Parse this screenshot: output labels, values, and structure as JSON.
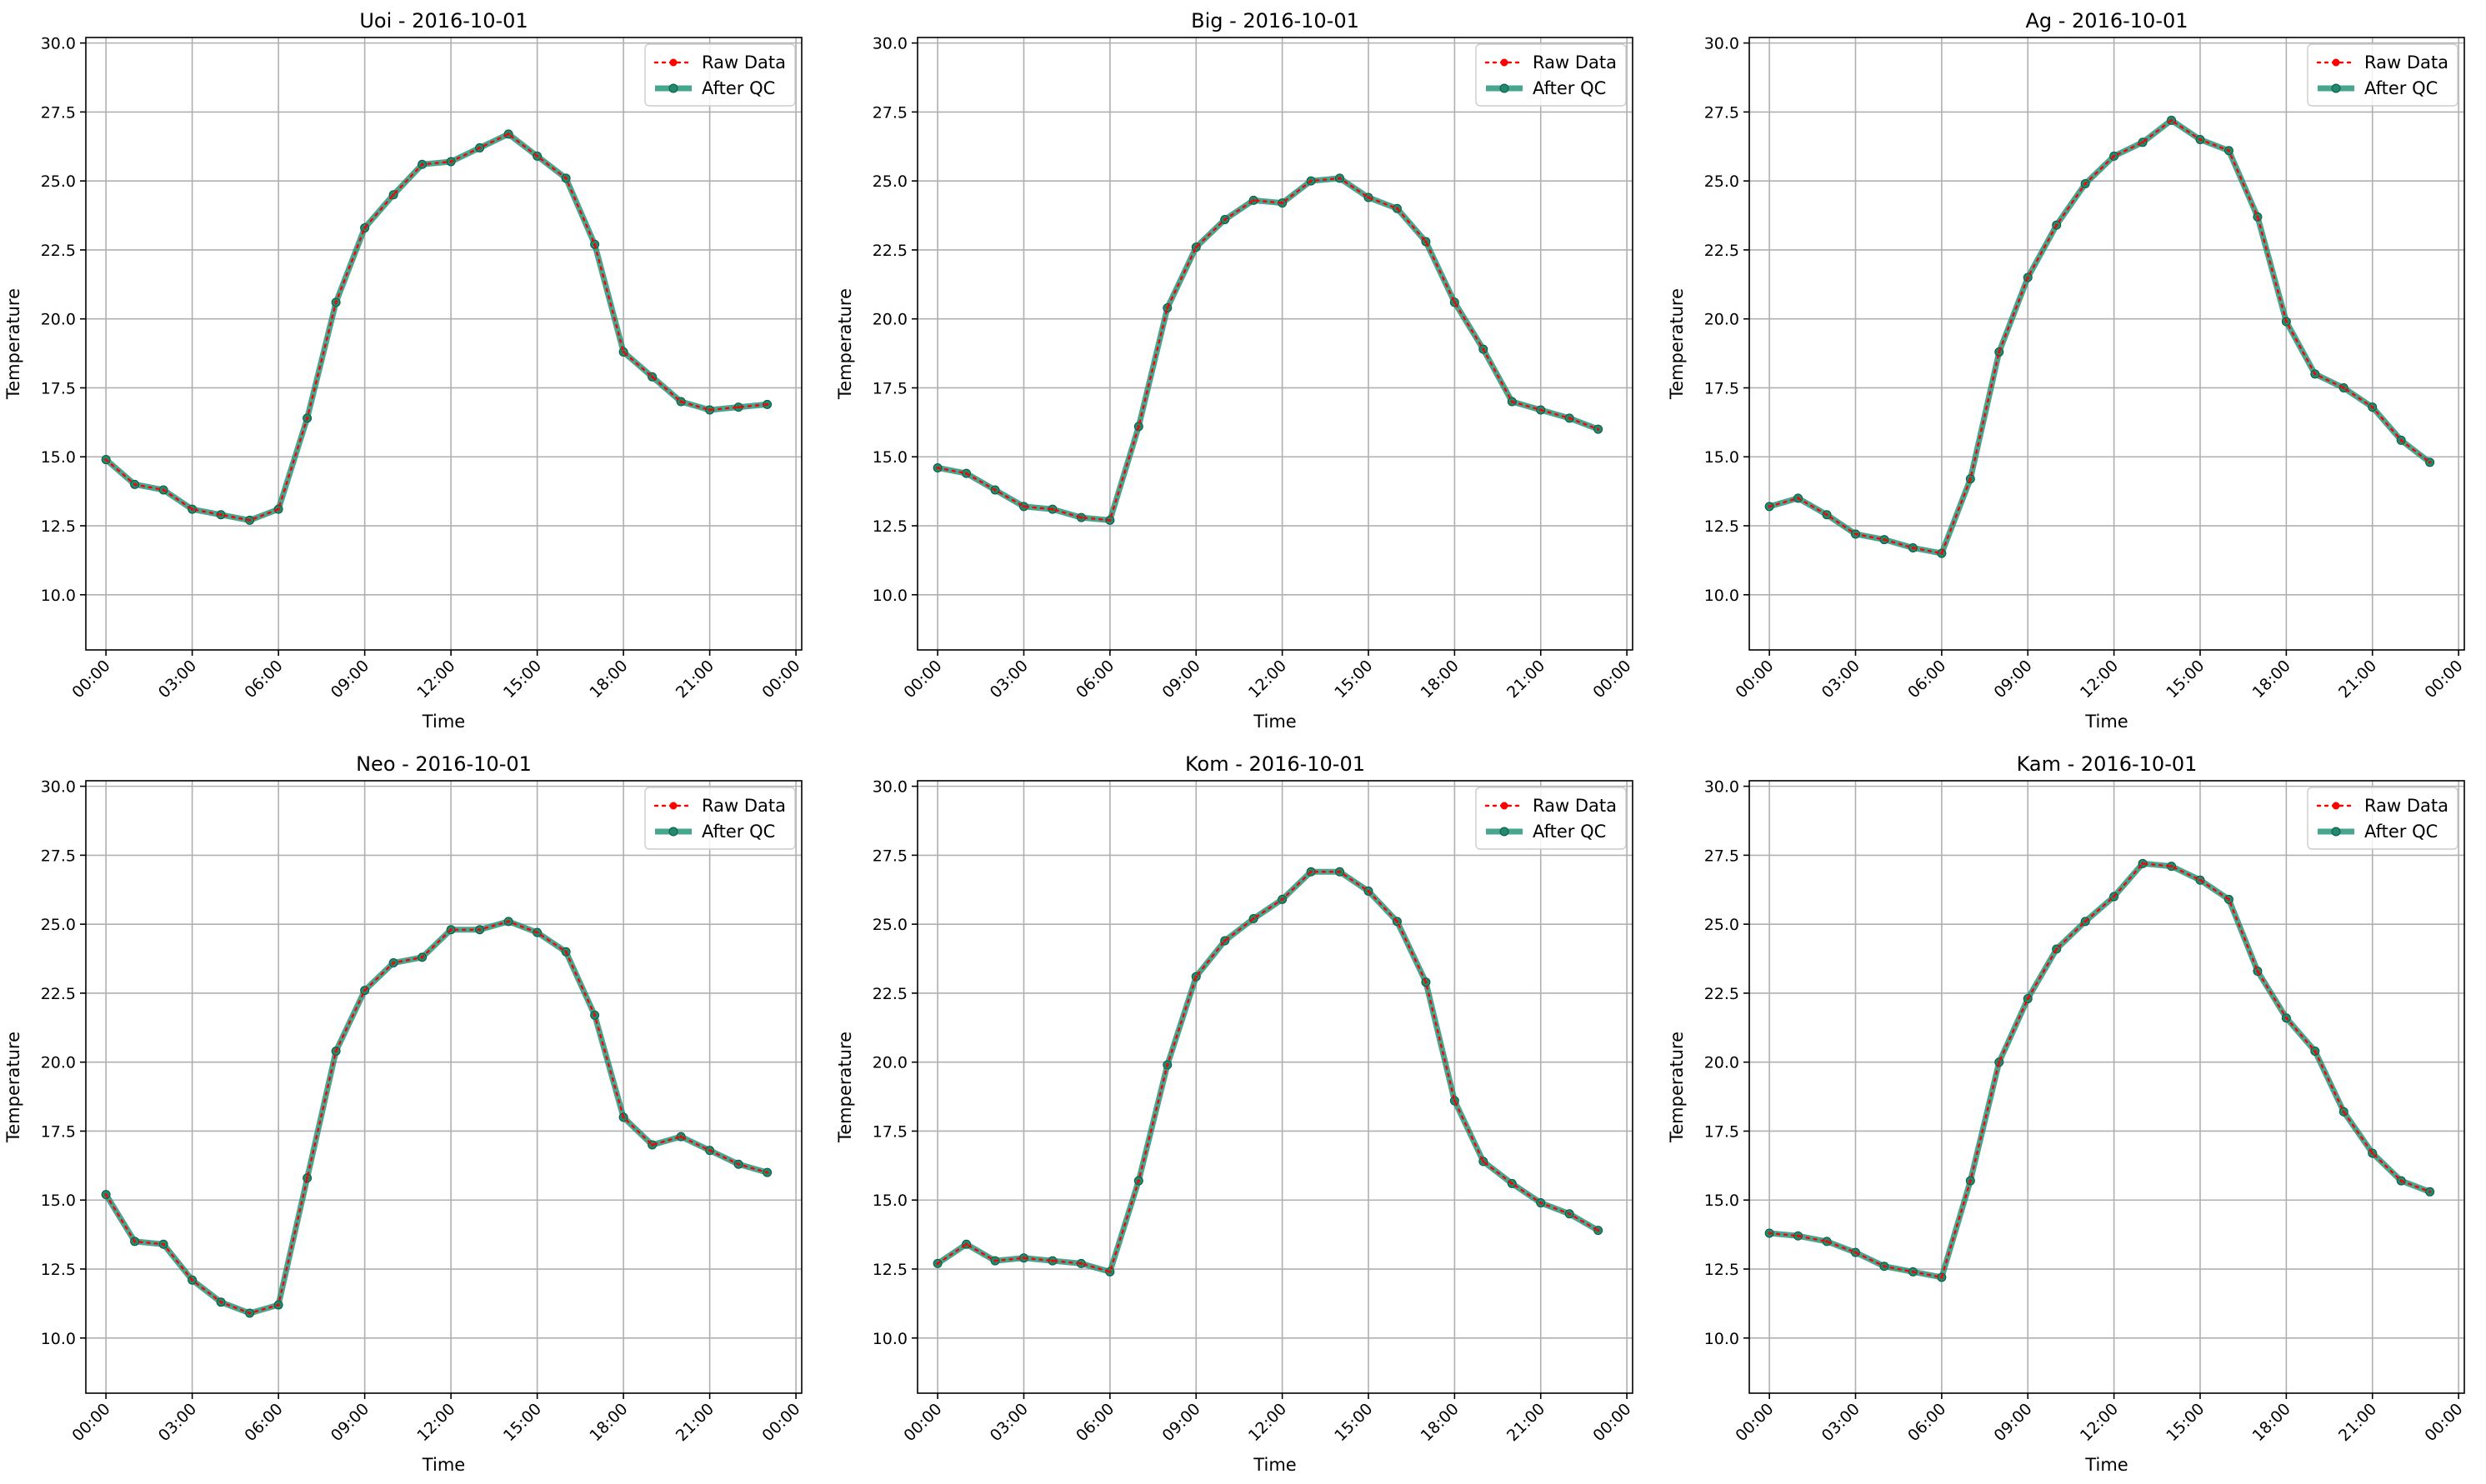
{
  "legend": {
    "raw_label": "Raw Data",
    "qc_label": "After QC"
  },
  "colors": {
    "raw": "#ff0000",
    "qc": "#1a9074"
  },
  "chart_data": [
    {
      "type": "line",
      "title": "Uoi - 2016-10-01",
      "xlabel": "Time",
      "ylabel": "Temperature",
      "ylim": [
        8,
        30.2
      ],
      "xlim_hours": [
        -0.7,
        24.2
      ],
      "yticks": [
        "10.0",
        "12.5",
        "15.0",
        "17.5",
        "20.0",
        "22.5",
        "25.0",
        "27.5",
        "30.0"
      ],
      "xticks": [
        "00:00",
        "03:00",
        "06:00",
        "09:00",
        "12:00",
        "15:00",
        "18:00",
        "21:00",
        "00:00"
      ],
      "grid": true,
      "legend_position": "top-right",
      "x": [
        "00:00",
        "01:00",
        "02:00",
        "03:00",
        "04:00",
        "05:00",
        "06:00",
        "07:00",
        "08:00",
        "09:00",
        "10:00",
        "11:00",
        "12:00",
        "13:00",
        "14:00",
        "15:00",
        "16:00",
        "17:00",
        "18:00",
        "19:00",
        "20:00",
        "21:00",
        "22:00",
        "23:00"
      ],
      "series": [
        {
          "name": "Raw Data",
          "values": [
            14.9,
            14.0,
            13.8,
            13.1,
            12.9,
            12.7,
            13.1,
            16.4,
            20.6,
            23.3,
            24.5,
            25.6,
            25.7,
            26.2,
            26.7,
            25.9,
            25.1,
            22.7,
            18.8,
            17.9,
            17.0,
            16.7,
            16.8,
            16.9
          ]
        },
        {
          "name": "After QC",
          "values": [
            14.9,
            14.0,
            13.8,
            13.1,
            12.9,
            12.7,
            13.1,
            16.4,
            20.6,
            23.3,
            24.5,
            25.6,
            25.7,
            26.2,
            26.7,
            25.9,
            25.1,
            22.7,
            18.8,
            17.9,
            17.0,
            16.7,
            16.8,
            16.9
          ]
        }
      ]
    },
    {
      "type": "line",
      "title": "Big - 2016-10-01",
      "xlabel": "Time",
      "ylabel": "Temperature",
      "ylim": [
        8,
        30.2
      ],
      "xlim_hours": [
        -0.7,
        24.2
      ],
      "yticks": [
        "10.0",
        "12.5",
        "15.0",
        "17.5",
        "20.0",
        "22.5",
        "25.0",
        "27.5",
        "30.0"
      ],
      "xticks": [
        "00:00",
        "03:00",
        "06:00",
        "09:00",
        "12:00",
        "15:00",
        "18:00",
        "21:00",
        "00:00"
      ],
      "grid": true,
      "legend_position": "top-right",
      "x": [
        "00:00",
        "01:00",
        "02:00",
        "03:00",
        "04:00",
        "05:00",
        "06:00",
        "07:00",
        "08:00",
        "09:00",
        "10:00",
        "11:00",
        "12:00",
        "13:00",
        "14:00",
        "15:00",
        "16:00",
        "17:00",
        "18:00",
        "19:00",
        "20:00",
        "21:00",
        "22:00",
        "23:00"
      ],
      "series": [
        {
          "name": "Raw Data",
          "values": [
            14.6,
            14.4,
            13.8,
            13.2,
            13.1,
            12.8,
            12.7,
            16.1,
            20.4,
            22.6,
            23.6,
            24.3,
            24.2,
            25.0,
            25.1,
            24.4,
            24.0,
            22.8,
            20.6,
            18.9,
            17.0,
            16.7,
            16.4,
            16.0
          ]
        },
        {
          "name": "After QC",
          "values": [
            14.6,
            14.4,
            13.8,
            13.2,
            13.1,
            12.8,
            12.7,
            16.1,
            20.4,
            22.6,
            23.6,
            24.3,
            24.2,
            25.0,
            25.1,
            24.4,
            24.0,
            22.8,
            20.6,
            18.9,
            17.0,
            16.7,
            16.4,
            16.0
          ]
        }
      ]
    },
    {
      "type": "line",
      "title": "Ag - 2016-10-01",
      "xlabel": "Time",
      "ylabel": "Temperature",
      "ylim": [
        8,
        30.2
      ],
      "xlim_hours": [
        -0.7,
        24.2
      ],
      "yticks": [
        "10.0",
        "12.5",
        "15.0",
        "17.5",
        "20.0",
        "22.5",
        "25.0",
        "27.5",
        "30.0"
      ],
      "xticks": [
        "00:00",
        "03:00",
        "06:00",
        "09:00",
        "12:00",
        "15:00",
        "18:00",
        "21:00",
        "00:00"
      ],
      "grid": true,
      "legend_position": "top-right",
      "x": [
        "00:00",
        "01:00",
        "02:00",
        "03:00",
        "04:00",
        "05:00",
        "06:00",
        "07:00",
        "08:00",
        "09:00",
        "10:00",
        "11:00",
        "12:00",
        "13:00",
        "14:00",
        "15:00",
        "16:00",
        "17:00",
        "18:00",
        "19:00",
        "20:00",
        "21:00",
        "22:00",
        "23:00"
      ],
      "series": [
        {
          "name": "Raw Data",
          "values": [
            13.2,
            13.5,
            12.9,
            12.2,
            12.0,
            11.7,
            11.5,
            14.2,
            18.8,
            21.5,
            23.4,
            24.9,
            25.9,
            26.4,
            27.2,
            26.5,
            26.1,
            23.7,
            19.9,
            18.0,
            17.5,
            16.8,
            15.6,
            14.8
          ]
        },
        {
          "name": "After QC",
          "values": [
            13.2,
            13.5,
            12.9,
            12.2,
            12.0,
            11.7,
            11.5,
            14.2,
            18.8,
            21.5,
            23.4,
            24.9,
            25.9,
            26.4,
            27.2,
            26.5,
            26.1,
            23.7,
            19.9,
            18.0,
            17.5,
            16.8,
            15.6,
            14.8
          ]
        }
      ]
    },
    {
      "type": "line",
      "title": "Neo - 2016-10-01",
      "xlabel": "Time",
      "ylabel": "Temperature",
      "ylim": [
        8,
        30.2
      ],
      "xlim_hours": [
        -0.7,
        24.2
      ],
      "yticks": [
        "10.0",
        "12.5",
        "15.0",
        "17.5",
        "20.0",
        "22.5",
        "25.0",
        "27.5",
        "30.0"
      ],
      "xticks": [
        "00:00",
        "03:00",
        "06:00",
        "09:00",
        "12:00",
        "15:00",
        "18:00",
        "21:00",
        "00:00"
      ],
      "grid": true,
      "legend_position": "top-right",
      "x": [
        "00:00",
        "01:00",
        "02:00",
        "03:00",
        "04:00",
        "05:00",
        "06:00",
        "07:00",
        "08:00",
        "09:00",
        "10:00",
        "11:00",
        "12:00",
        "13:00",
        "14:00",
        "15:00",
        "16:00",
        "17:00",
        "18:00",
        "19:00",
        "20:00",
        "21:00",
        "22:00",
        "23:00"
      ],
      "series": [
        {
          "name": "Raw Data",
          "values": [
            15.2,
            13.5,
            13.4,
            12.1,
            11.3,
            10.9,
            11.2,
            15.8,
            20.4,
            22.6,
            23.6,
            23.8,
            24.8,
            24.8,
            25.1,
            24.7,
            24.0,
            21.7,
            18.0,
            17.0,
            17.3,
            16.8,
            16.3,
            16.0
          ]
        },
        {
          "name": "After QC",
          "values": [
            15.2,
            13.5,
            13.4,
            12.1,
            11.3,
            10.9,
            11.2,
            15.8,
            20.4,
            22.6,
            23.6,
            23.8,
            24.8,
            24.8,
            25.1,
            24.7,
            24.0,
            21.7,
            18.0,
            17.0,
            17.3,
            16.8,
            16.3,
            16.0
          ]
        }
      ]
    },
    {
      "type": "line",
      "title": "Kom - 2016-10-01",
      "xlabel": "Time",
      "ylabel": "Temperature",
      "ylim": [
        8,
        30.2
      ],
      "xlim_hours": [
        -0.7,
        24.2
      ],
      "yticks": [
        "10.0",
        "12.5",
        "15.0",
        "17.5",
        "20.0",
        "22.5",
        "25.0",
        "27.5",
        "30.0"
      ],
      "xticks": [
        "00:00",
        "03:00",
        "06:00",
        "09:00",
        "12:00",
        "15:00",
        "18:00",
        "21:00",
        "00:00"
      ],
      "grid": true,
      "legend_position": "top-right",
      "x": [
        "00:00",
        "01:00",
        "02:00",
        "03:00",
        "04:00",
        "05:00",
        "06:00",
        "07:00",
        "08:00",
        "09:00",
        "10:00",
        "11:00",
        "12:00",
        "13:00",
        "14:00",
        "15:00",
        "16:00",
        "17:00",
        "18:00",
        "19:00",
        "20:00",
        "21:00",
        "22:00",
        "23:00"
      ],
      "series": [
        {
          "name": "Raw Data",
          "values": [
            12.7,
            13.4,
            12.8,
            12.9,
            12.8,
            12.7,
            12.4,
            15.7,
            19.9,
            23.1,
            24.4,
            25.2,
            25.9,
            26.9,
            26.9,
            26.2,
            25.1,
            22.9,
            18.6,
            16.4,
            15.6,
            14.9,
            14.5,
            13.9
          ]
        },
        {
          "name": "After QC",
          "values": [
            12.7,
            13.4,
            12.8,
            12.9,
            12.8,
            12.7,
            12.4,
            15.7,
            19.9,
            23.1,
            24.4,
            25.2,
            25.9,
            26.9,
            26.9,
            26.2,
            25.1,
            22.9,
            18.6,
            16.4,
            15.6,
            14.9,
            14.5,
            13.9
          ]
        }
      ]
    },
    {
      "type": "line",
      "title": "Kam - 2016-10-01",
      "xlabel": "Time",
      "ylabel": "Temperature",
      "ylim": [
        8,
        30.2
      ],
      "xlim_hours": [
        -0.7,
        24.2
      ],
      "yticks": [
        "10.0",
        "12.5",
        "15.0",
        "17.5",
        "20.0",
        "22.5",
        "25.0",
        "27.5",
        "30.0"
      ],
      "xticks": [
        "00:00",
        "03:00",
        "06:00",
        "09:00",
        "12:00",
        "15:00",
        "18:00",
        "21:00",
        "00:00"
      ],
      "grid": true,
      "legend_position": "top-right",
      "x": [
        "00:00",
        "01:00",
        "02:00",
        "03:00",
        "04:00",
        "05:00",
        "06:00",
        "07:00",
        "08:00",
        "09:00",
        "10:00",
        "11:00",
        "12:00",
        "13:00",
        "14:00",
        "15:00",
        "16:00",
        "17:00",
        "18:00",
        "19:00",
        "20:00",
        "21:00",
        "22:00",
        "23:00"
      ],
      "series": [
        {
          "name": "Raw Data",
          "values": [
            13.8,
            13.7,
            13.5,
            13.1,
            12.6,
            12.4,
            12.2,
            15.7,
            20.0,
            22.3,
            24.1,
            25.1,
            26.0,
            27.2,
            27.1,
            26.6,
            25.9,
            23.3,
            21.6,
            20.4,
            18.2,
            16.7,
            15.7,
            15.3
          ]
        },
        {
          "name": "After QC",
          "values": [
            13.8,
            13.7,
            13.5,
            13.1,
            12.6,
            12.4,
            12.2,
            15.7,
            20.0,
            22.3,
            24.1,
            25.1,
            26.0,
            27.2,
            27.1,
            26.6,
            25.9,
            23.3,
            21.6,
            20.4,
            18.2,
            16.7,
            15.7,
            15.3
          ]
        }
      ]
    }
  ]
}
